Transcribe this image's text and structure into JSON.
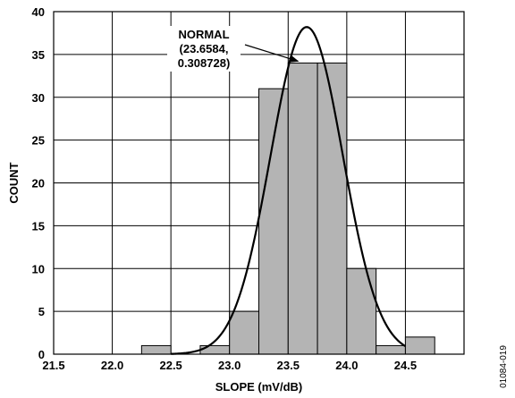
{
  "chart_data": {
    "type": "bar",
    "subtype": "histogram-with-fitted-curve",
    "title": "",
    "xlabel": "SLOPE (mV/dB)",
    "ylabel": "COUNT",
    "xlim": [
      21.5,
      25.0
    ],
    "ylim": [
      0,
      40
    ],
    "x_ticks": [
      "21.5",
      "22.0",
      "22.5",
      "23.0",
      "23.5",
      "24.0",
      "24.5"
    ],
    "y_ticks": [
      "0",
      "5",
      "10",
      "15",
      "20",
      "25",
      "30",
      "35",
      "40"
    ],
    "grid": true,
    "bin_width": 0.25,
    "bins": [
      {
        "start": 22.25,
        "count": 1
      },
      {
        "start": 22.75,
        "count": 1
      },
      {
        "start": 23.0,
        "count": 5
      },
      {
        "start": 23.25,
        "count": 31
      },
      {
        "start": 23.5,
        "count": 34
      },
      {
        "start": 23.75,
        "count": 34
      },
      {
        "start": 24.0,
        "count": 10
      },
      {
        "start": 24.25,
        "count": 1
      },
      {
        "start": 24.5,
        "count": 2
      }
    ],
    "fitted_curve": {
      "type": "normal",
      "mean": 23.6584,
      "sd": 0.308728,
      "peak": 38.2,
      "range": [
        22.5,
        24.5
      ]
    },
    "annotation": {
      "lines": [
        "NORMAL",
        "(23.6584,",
        "0.308728)"
      ],
      "arrow_target": [
        23.6,
        34
      ]
    },
    "bar_color": "#b4b4b4",
    "figure_id": "01084-019"
  }
}
